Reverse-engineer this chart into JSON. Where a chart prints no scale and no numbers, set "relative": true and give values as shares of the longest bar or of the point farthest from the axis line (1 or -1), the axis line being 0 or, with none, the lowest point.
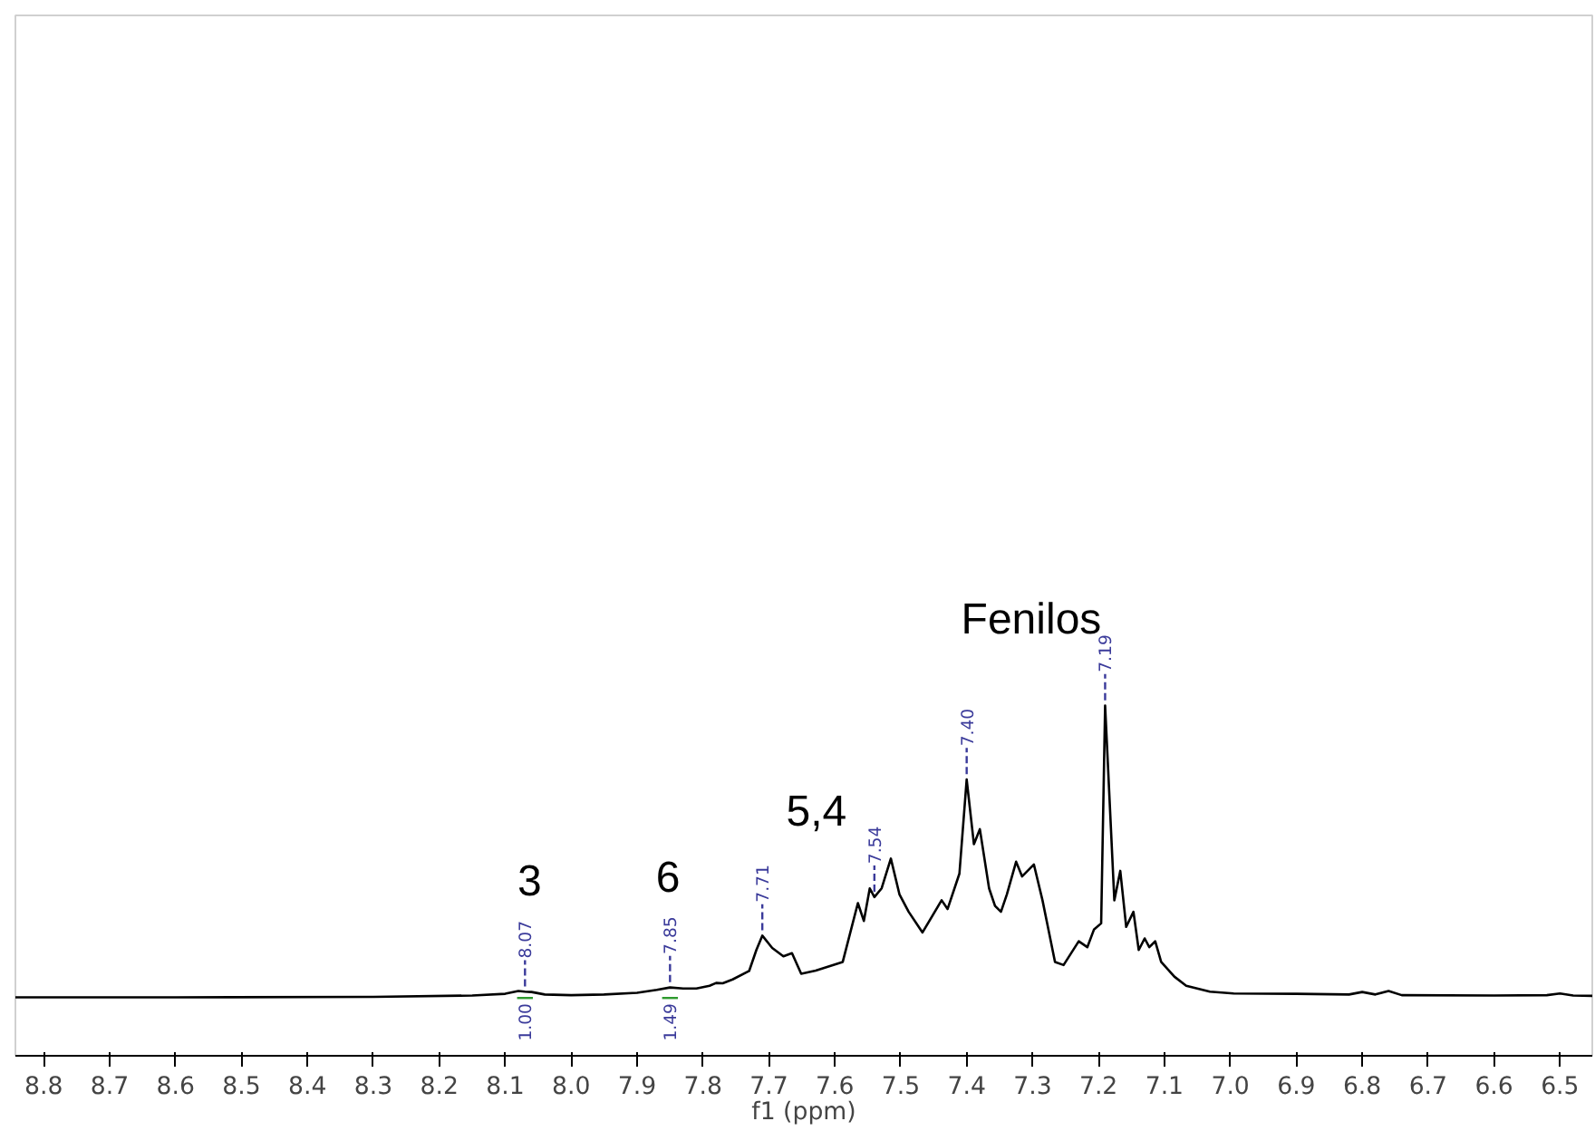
{
  "chart_data": {
    "type": "line",
    "relative": true,
    "xlabel": "f1 (ppm)",
    "xlim": [
      8.843,
      6.451
    ],
    "xticks": [
      8.8,
      8.7,
      8.6,
      8.5,
      8.4,
      8.3,
      8.2,
      8.1,
      {
        "value": 8,
        "label": "8.0"
      },
      7.9,
      7.8,
      7.7,
      7.6,
      7.5,
      7.4,
      7.3,
      7.2,
      7.1,
      {
        "value": 7,
        "label": "7.0"
      },
      6.9,
      6.8,
      6.7,
      6.6,
      6.5
    ],
    "grid": false,
    "marker": "none",
    "line_style": "solid",
    "x": [
      8.843,
      8.6,
      8.3,
      8.15,
      8.1,
      8.08,
      8.07,
      8.06,
      8.04,
      8.0,
      7.95,
      7.9,
      7.87,
      7.85,
      7.83,
      7.81,
      7.79,
      7.78,
      7.77,
      7.755,
      7.73,
      7.719,
      7.71,
      7.695,
      7.678,
      7.665,
      7.651,
      7.629,
      7.588,
      7.565,
      7.556,
      7.547,
      7.54,
      7.529,
      7.515,
      7.502,
      7.488,
      7.467,
      7.438,
      7.429,
      7.411,
      7.4,
      7.389,
      7.38,
      7.366,
      7.357,
      7.348,
      7.339,
      7.325,
      7.316,
      7.298,
      7.285,
      7.266,
      7.253,
      7.23,
      7.217,
      7.207,
      7.196,
      7.19,
      7.176,
      7.167,
      7.158,
      7.147,
      7.139,
      7.13,
      7.123,
      7.114,
      7.105,
      7.085,
      7.067,
      7.031,
      6.995,
      6.9,
      6.82,
      6.8,
      6.78,
      6.76,
      6.74,
      6.6,
      6.52,
      6.5,
      6.48,
      6.451
    ],
    "series": [
      {
        "color": "#000000",
        "values": [
          0.167,
          0.167,
          0.168,
          0.172,
          0.177,
          0.185,
          0.183,
          0.182,
          0.175,
          0.173,
          0.175,
          0.18,
          0.188,
          0.195,
          0.192,
          0.192,
          0.2,
          0.208,
          0.207,
          0.218,
          0.242,
          0.302,
          0.343,
          0.308,
          0.284,
          0.293,
          0.234,
          0.243,
          0.268,
          0.436,
          0.385,
          0.478,
          0.453,
          0.478,
          0.563,
          0.461,
          0.411,
          0.352,
          0.444,
          0.419,
          0.52,
          0.789,
          0.604,
          0.647,
          0.478,
          0.428,
          0.411,
          0.461,
          0.554,
          0.512,
          0.546,
          0.444,
          0.268,
          0.259,
          0.327,
          0.31,
          0.36,
          0.378,
          1.0,
          0.444,
          0.528,
          0.368,
          0.411,
          0.302,
          0.335,
          0.31,
          0.327,
          0.268,
          0.226,
          0.2,
          0.183,
          0.178,
          0.177,
          0.175,
          0.182,
          0.175,
          0.185,
          0.173,
          0.172,
          0.173,
          0.178,
          0.172,
          0.171
        ]
      }
    ],
    "annotations": [
      {
        "text": "8.07",
        "x": 8.07,
        "y": 0.183
      },
      {
        "text": "7.85",
        "x": 7.85,
        "y": 0.195
      },
      {
        "text": "7.71",
        "x": 7.71,
        "y": 0.343
      },
      {
        "text": "7.54",
        "x": 7.54,
        "y": 0.453
      },
      {
        "text": "7.40",
        "x": 7.4,
        "y": 0.789
      },
      {
        "text": "7.19",
        "x": 7.19,
        "y": 1.0
      },
      "1.00",
      "1.49",
      "3",
      "6",
      "5,4",
      "Fenilos"
    ]
  }
}
